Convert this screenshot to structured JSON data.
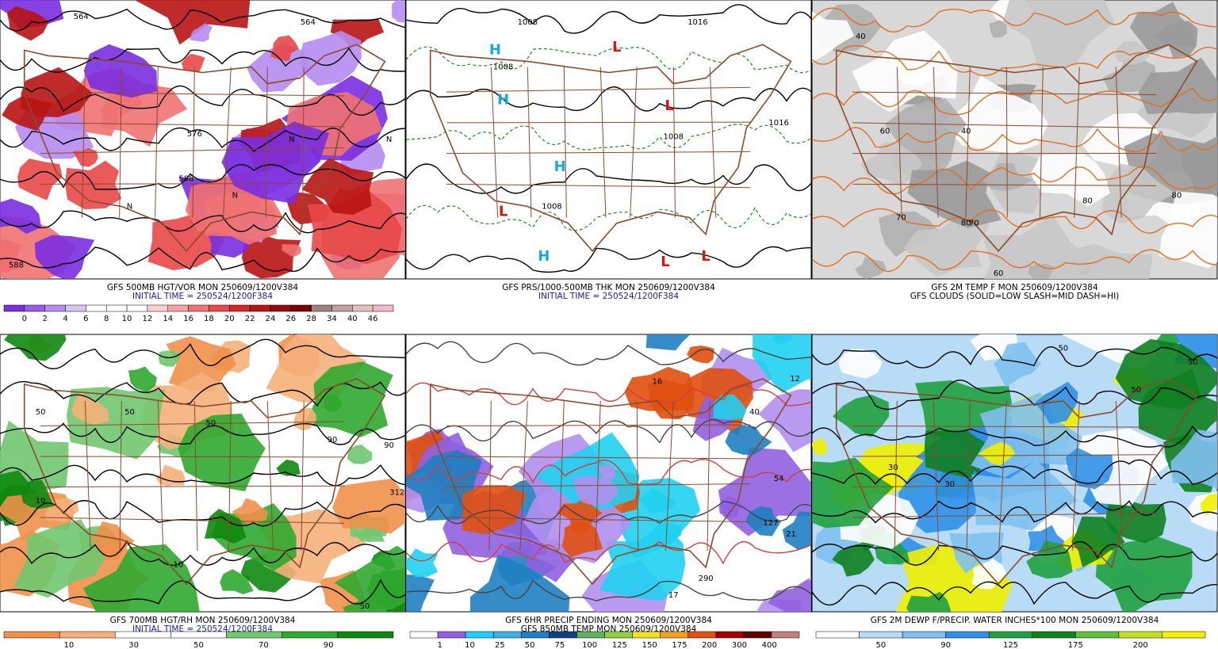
{
  "panels": [
    {
      "captions": [
        "GFS 500MB HGT/VOR MON 250609/1200V384",
        "INITIAL TIME = 250524/1200F384"
      ],
      "colorbar": {
        "labels": [
          "0",
          "2",
          "4",
          "6",
          "8",
          "10",
          "12",
          "14",
          "16",
          "18",
          "20",
          "22",
          "24",
          "26",
          "28",
          "34",
          "40",
          "46"
        ],
        "colors": [
          "#7a2ee0",
          "#9a5be8",
          "#b58cf0",
          "#d8c4f7",
          "#ffffff",
          "#ffffff",
          "#ffffff",
          "#fbd0d0",
          "#f7a3a3",
          "#f07272",
          "#e84848",
          "#d42a2a",
          "#b81414",
          "#960a0a",
          "#7a0000",
          "#a08080",
          "#c0a0a0",
          "#e0c0c0",
          "#f5b8c8"
        ]
      },
      "map_labels": [
        "564",
        "564",
        "576",
        "588",
        "588",
        "N",
        "N",
        "N",
        "N"
      ]
    },
    {
      "captions": [
        "GFS PRS/1000-500MB THK MON 250609/1200V384",
        "INITIAL TIME = 250524/1200F384"
      ],
      "map_labels": [
        "1008",
        "1008",
        "1016",
        "1016",
        "1008",
        "1008",
        "H",
        "H",
        "H",
        "H",
        "L",
        "L",
        "L",
        "L",
        "L"
      ]
    },
    {
      "captions": [
        "GFS 2M TEMP F MON 250609/1200V384",
        "GFS CLOUDS (SOLID=LOW SLASH=MID DASH=HI)"
      ],
      "map_labels": [
        "60",
        "60",
        "70",
        "70",
        "80",
        "80",
        "80",
        "40",
        "40"
      ]
    },
    {
      "captions": [
        "GFS 700MB HGT/RH MON 250609/1200V384",
        "INITIAL TIME = 250524/1200F384"
      ],
      "colorbar": {
        "labels": [
          "10",
          "30",
          "50",
          "70",
          "90"
        ],
        "colors": [
          "#f0904a",
          "#f5b07a",
          "#ffffff",
          "#ffffff",
          "#70c870",
          "#30a830",
          "#108810"
        ]
      },
      "map_labels": [
        "50",
        "50",
        "50",
        "90",
        "90",
        "10",
        "10",
        "312",
        "50"
      ]
    },
    {
      "captions": [
        "GFS 6HR PRECIP ENDING MON 250609/1200V384",
        "GFS 850MB TEMP MON 250609/1200V384"
      ],
      "colorbar": {
        "labels": [
          "1",
          "10",
          "25",
          "50",
          "75",
          "100",
          "125",
          "150",
          "175",
          "200",
          "300",
          "400"
        ],
        "colors": [
          "#ffffff",
          "#9060e0",
          "#20d0f0",
          "#40b0e0",
          "#2080c0",
          "#104080",
          "#60b060",
          "#90d040",
          "#f0e020",
          "#f0a020",
          "#e05010",
          "#a00000",
          "#600000",
          "#c08080"
        ]
      },
      "map_labels": [
        "16",
        "12",
        "40",
        "54",
        "127",
        "21",
        "17",
        "290"
      ]
    },
    {
      "captions": [
        "GFS 2M DEWP F/PRECIP. WATER INCHES*100 MON 250609/1200V384"
      ],
      "colorbar": {
        "labels": [
          "50",
          "90",
          "125",
          "175",
          "200"
        ],
        "colors": [
          "#ffffff",
          "#b8dcf5",
          "#80c0f0",
          "#3090e8",
          "#20a040",
          "#108020",
          "#60c040",
          "#c0e020",
          "#f0f000"
        ]
      },
      "map_labels": [
        "50",
        "50",
        "30",
        "30",
        "50"
      ]
    }
  ]
}
